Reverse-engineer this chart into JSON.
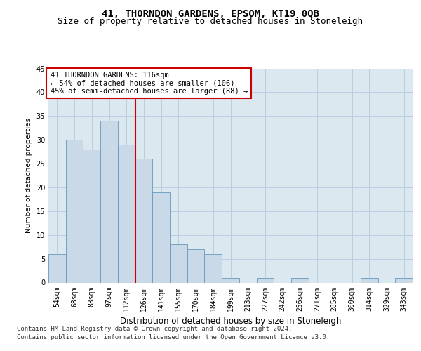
{
  "title": "41, THORNDON GARDENS, EPSOM, KT19 0QB",
  "subtitle": "Size of property relative to detached houses in Stoneleigh",
  "xlabel": "Distribution of detached houses by size in Stoneleigh",
  "ylabel": "Number of detached properties",
  "bar_labels": [
    "54sqm",
    "68sqm",
    "83sqm",
    "97sqm",
    "112sqm",
    "126sqm",
    "141sqm",
    "155sqm",
    "170sqm",
    "184sqm",
    "199sqm",
    "213sqm",
    "227sqm",
    "242sqm",
    "256sqm",
    "271sqm",
    "285sqm",
    "300sqm",
    "314sqm",
    "329sqm",
    "343sqm"
  ],
  "bar_values": [
    6,
    30,
    28,
    34,
    29,
    26,
    19,
    8,
    7,
    6,
    1,
    0,
    1,
    0,
    1,
    0,
    0,
    0,
    1,
    0,
    1
  ],
  "bar_color": "#c9d9e8",
  "bar_edge_color": "#6699bb",
  "vline_x": 4.5,
  "vline_color": "#cc0000",
  "annotation_text": "41 THORNDON GARDENS: 116sqm\n← 54% of detached houses are smaller (106)\n45% of semi-detached houses are larger (88) →",
  "annotation_box_color": "#ffffff",
  "annotation_box_edge": "#cc0000",
  "ylim": [
    0,
    45
  ],
  "yticks": [
    0,
    5,
    10,
    15,
    20,
    25,
    30,
    35,
    40,
    45
  ],
  "grid_color": "#b8cfe0",
  "background_color": "#dce8f0",
  "footer_line1": "Contains HM Land Registry data © Crown copyright and database right 2024.",
  "footer_line2": "Contains public sector information licensed under the Open Government Licence v3.0.",
  "title_fontsize": 10,
  "subtitle_fontsize": 9,
  "xlabel_fontsize": 8.5,
  "ylabel_fontsize": 7.5,
  "tick_fontsize": 7,
  "annotation_fontsize": 7.5,
  "footer_fontsize": 6.5
}
